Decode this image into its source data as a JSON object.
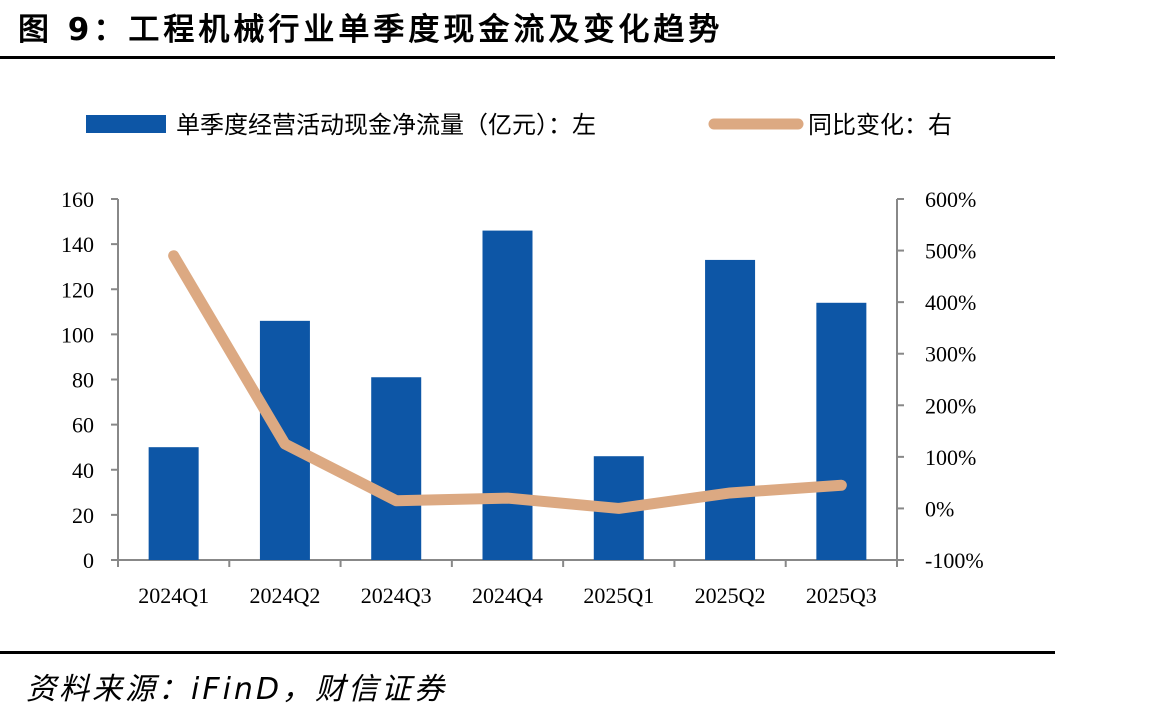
{
  "header": {
    "title": "图 9：工程机械行业单季度现金流及变化趋势"
  },
  "footer": {
    "source": "资料来源：iFinD，财信证券"
  },
  "chart_data": {
    "type": "bar",
    "title": "",
    "categories": [
      "2024Q1",
      "2024Q2",
      "2024Q3",
      "2024Q4",
      "2025Q1",
      "2025Q2",
      "2025Q3"
    ],
    "series": [
      {
        "name": "单季度经营活动现金净流量（亿元）：左",
        "type": "bar",
        "axis": "left",
        "color": "#0d56a6",
        "values": [
          50,
          106,
          81,
          146,
          46,
          133,
          114
        ]
      },
      {
        "name": "同比变化：右",
        "type": "line",
        "axis": "right",
        "color": "#dca982",
        "values": [
          490,
          125,
          15,
          20,
          0,
          30,
          45
        ]
      }
    ],
    "y_left": {
      "ylim": [
        0,
        160
      ],
      "ticks": [
        "0",
        "20",
        "40",
        "60",
        "80",
        "100",
        "120",
        "140",
        "160"
      ]
    },
    "y_right": {
      "ylim": [
        -100,
        600
      ],
      "ticks": [
        "-100%",
        "0%",
        "100%",
        "200%",
        "300%",
        "400%",
        "500%",
        "600%"
      ]
    },
    "legend": "top",
    "grid": false
  }
}
